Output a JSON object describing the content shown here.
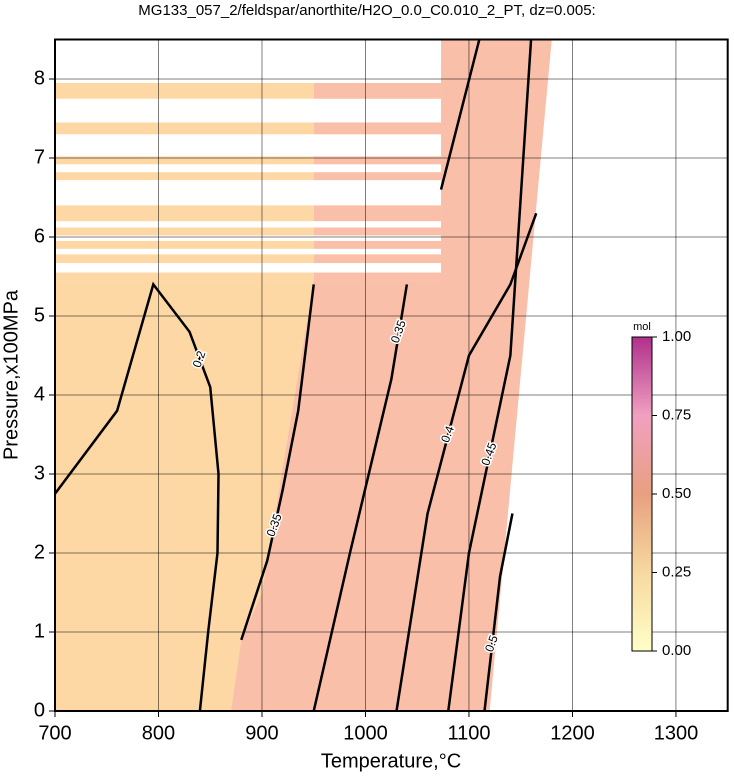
{
  "chart_data": {
    "type": "contour",
    "title": "MG133_057_2/feldspar/anorthite/H2O_0.0_C0.010_2_PT, dz=0.005:",
    "x_label": "Temperature,°C",
    "y_label": "Pressure,x100MPa",
    "xlim": [
      700,
      1350
    ],
    "ylim": [
      0,
      8.5
    ],
    "xticks": [
      700,
      800,
      900,
      1000,
      1100,
      1200,
      1300
    ],
    "yticks": [
      0,
      1,
      2,
      3,
      4,
      5,
      6,
      7,
      8
    ],
    "grid": true,
    "regions": [
      {
        "value": 0.2,
        "color": "#fdd8a4",
        "x": [
          700,
          840,
          870,
          880,
          900,
          950,
          700
        ],
        "y": [
          0,
          0,
          0,
          0.9,
          1.5,
          5.45,
          5.45
        ]
      },
      {
        "value": 0.35,
        "color": "#f9bfa8",
        "x": [
          870,
          1120,
          1180,
          1073,
          1073,
          950,
          900,
          880
        ],
        "y": [
          0,
          0,
          8.5,
          8.5,
          5.45,
          5.45,
          1.5,
          0.9
        ]
      }
    ],
    "bands": {
      "x": [
        700,
        950,
        1073
      ],
      "colors": [
        "#fdd8a4",
        "#f9bfa8"
      ],
      "y": [
        [
          5.45,
          5.55
        ],
        [
          5.67,
          5.78
        ],
        [
          5.85,
          5.95
        ],
        [
          6.02,
          6.12
        ],
        [
          6.2,
          6.4
        ],
        [
          6.72,
          6.82
        ],
        [
          6.92,
          7.02
        ],
        [
          7.3,
          7.45
        ],
        [
          7.75,
          7.95
        ]
      ]
    },
    "series": [
      {
        "name": "0.2",
        "color": "#000000",
        "x": [
          700,
          760,
          795,
          830,
          850,
          858,
          857,
          848,
          840
        ],
        "y": [
          2.75,
          3.8,
          5.4,
          4.8,
          4.1,
          3.0,
          2.0,
          1.0,
          0
        ]
      },
      {
        "name": "0.35",
        "color": "#000000",
        "x": [
          880,
          905,
          920,
          935,
          950
        ],
        "y": [
          0.9,
          1.9,
          2.8,
          3.8,
          5.4
        ]
      },
      {
        "name": "0.35",
        "color": "#000000",
        "x": [
          950,
          985,
          1025,
          1040,
          null,
          1073,
          1110
        ],
        "y": [
          0,
          2.0,
          4.2,
          5.4,
          null,
          6.6,
          8.5
        ]
      },
      {
        "name": "0.4",
        "color": "#000000",
        "x": [
          1030,
          1060,
          1100,
          1140,
          1165
        ],
        "y": [
          0,
          2.5,
          4.5,
          5.4,
          6.3
        ]
      },
      {
        "name": "0.45",
        "color": "#000000",
        "x": [
          1080,
          1100,
          1140,
          1160
        ],
        "y": [
          0,
          2.0,
          4.5,
          8.5
        ]
      },
      {
        "name": "0.5",
        "color": "#000000",
        "x": [
          1115,
          1130,
          1142
        ],
        "y": [
          0,
          1.7,
          2.5
        ]
      }
    ],
    "colorbar": {
      "label": "mol",
      "lim": [
        0,
        1
      ],
      "colors": [
        "#ffffc8",
        "#f6d9a0",
        "#e8a080",
        "#f0a0c0",
        "#b0308c"
      ],
      "ticks": [
        {
          "value": 0,
          "label": "0.00"
        },
        {
          "value": 0.25,
          "label": "0.25"
        },
        {
          "value": 0.5,
          "label": "0.50"
        },
        {
          "value": 0.75,
          "label": "0.75"
        },
        {
          "value": 1,
          "label": "1.00"
        }
      ]
    }
  }
}
